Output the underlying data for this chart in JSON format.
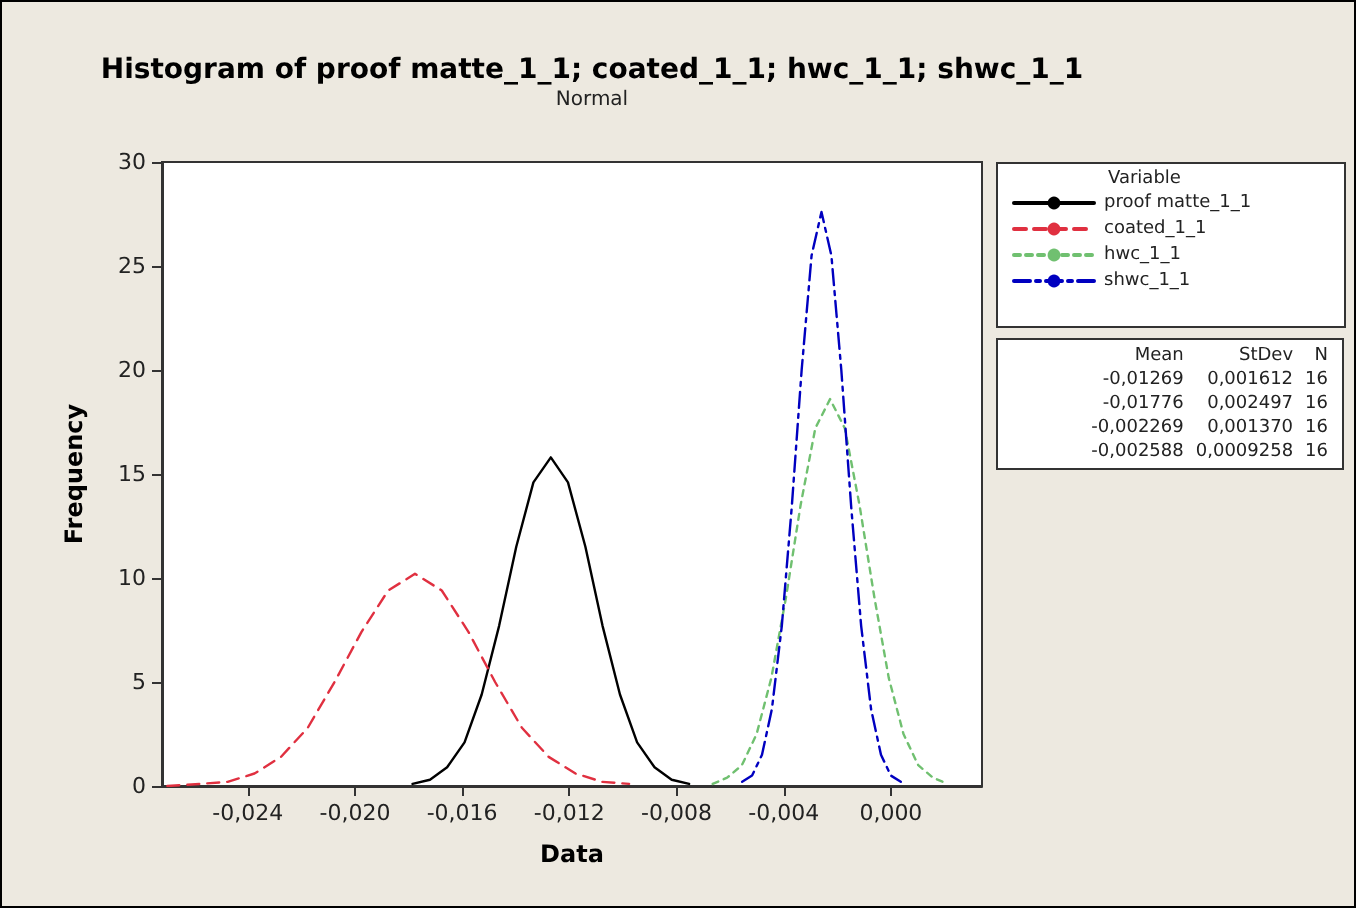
{
  "chart_data": {
    "type": "line",
    "title": "Histogram of proof matte_1_1; coated_1_1; hwc_1_1; shwc_1_1",
    "subtitle": "Normal",
    "xlabel": "Data",
    "ylabel": "Frequency",
    "legend_title": "Variable",
    "legend": "right",
    "grid": false,
    "marker": "none",
    "xlim": [
      -0.0272,
      0.0034
    ],
    "ylim": [
      0,
      30
    ],
    "xticks": [
      {
        "value": -0.024,
        "label": "-0,024"
      },
      {
        "value": -0.02,
        "label": "-0,020"
      },
      {
        "value": -0.016,
        "label": "-0,016"
      },
      {
        "value": -0.012,
        "label": "-0,012"
      },
      {
        "value": -0.008,
        "label": "-0,008"
      },
      {
        "value": -0.004,
        "label": "-0,004"
      },
      {
        "value": 0,
        "label": "0,000"
      }
    ],
    "yticks": [
      0,
      5,
      10,
      15,
      20,
      25,
      30
    ],
    "series": [
      {
        "name": "proof matte_1_1",
        "color": "#000000",
        "line_style": "solid",
        "x": [
          -0.01785,
          -0.0172,
          -0.01656,
          -0.01591,
          -0.01527,
          -0.01462,
          -0.01398,
          -0.01334,
          -0.01269,
          -0.01205,
          -0.0114,
          -0.01076,
          -0.01011,
          -0.00947,
          -0.00882,
          -0.00818,
          -0.00753
        ],
        "values": [
          0.1,
          0.3,
          0.9,
          2.1,
          4.4,
          7.7,
          11.5,
          14.6,
          15.8,
          14.6,
          11.5,
          7.7,
          4.4,
          2.1,
          0.9,
          0.3,
          0.1
        ]
      },
      {
        "name": "coated_1_1",
        "color": "#e03040",
        "line_style": "dashed",
        "x": [
          -0.027,
          -0.02575,
          -0.02475,
          -0.02375,
          -0.02276,
          -0.02176,
          -0.02076,
          -0.01976,
          -0.01876,
          -0.01776,
          -0.01676,
          -0.01576,
          -0.01477,
          -0.01377,
          -0.01277,
          -0.01177,
          -0.01077,
          -0.00977
        ],
        "values": [
          0.0,
          0.1,
          0.2,
          0.6,
          1.4,
          2.8,
          5.0,
          7.4,
          9.4,
          10.2,
          9.4,
          7.4,
          5.0,
          2.8,
          1.4,
          0.6,
          0.2,
          0.1
        ]
      },
      {
        "name": "hwc_1_1",
        "color": "#70c070",
        "line_style": "dashed",
        "x": [
          -0.00665,
          -0.00611,
          -0.00556,
          -0.00501,
          -0.00446,
          -0.00391,
          -0.00337,
          -0.00282,
          -0.00227,
          -0.00172,
          -0.00117,
          -0.00062,
          -8e-05,
          0.00047,
          0.00102,
          0.00157,
          0.00212
        ],
        "values": [
          0.1,
          0.4,
          1.0,
          2.5,
          5.2,
          9.1,
          13.5,
          17.2,
          18.6,
          17.2,
          13.5,
          9.1,
          5.2,
          2.5,
          1.0,
          0.4,
          0.1
        ]
      },
      {
        "name": "shwc_1_1",
        "color": "#0000c0",
        "line_style": "dashed",
        "x": [
          -0.00555,
          -0.00518,
          -0.00481,
          -0.00444,
          -0.00407,
          -0.0037,
          -0.00333,
          -0.00296,
          -0.00259,
          -0.00222,
          -0.00185,
          -0.00148,
          -0.00111,
          -0.00074,
          -0.00037,
          0.0,
          0.00037
        ],
        "values": [
          0.2,
          0.5,
          1.5,
          3.7,
          7.7,
          13.4,
          20.0,
          25.5,
          27.6,
          25.5,
          20.0,
          13.4,
          7.7,
          3.7,
          1.5,
          0.5,
          0.2
        ]
      }
    ],
    "annotations": [
      "Mean",
      "StDev",
      "N",
      "-0,01269",
      "0,001612",
      "16",
      "-0,01776",
      "0,002497",
      "16",
      "-0,002269",
      "0,001370",
      "16",
      "-0,002588",
      "0,0009258",
      "16"
    ]
  }
}
